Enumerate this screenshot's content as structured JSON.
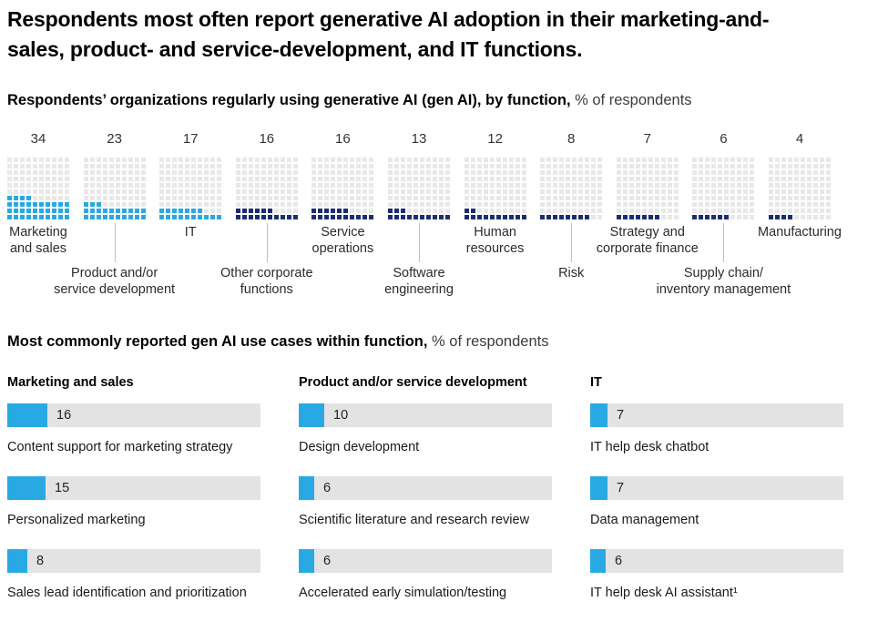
{
  "page": {
    "title": "Respondents most often report generative AI adoption in their marketing-and-sales, product- and service-development, and IT functions.",
    "accent_colors": {
      "cyan": "#29A9E3",
      "navy": "#1C2D72",
      "waffle_gray": "#E8E8E8",
      "track_gray": "#E3E3E3",
      "tick_gray": "#C0C0C0"
    }
  },
  "waffle_section": {
    "heading_bold": "Respondents’ organizations regularly using generative AI (gen AI), by function,",
    "heading_regular": " % of respondents",
    "functions": [
      {
        "label": "Marketing\nand sales",
        "value": 34,
        "highlight": true,
        "label_row": 1
      },
      {
        "label": "Product and/or\nservice development",
        "value": 23,
        "highlight": true,
        "label_row": 2
      },
      {
        "label": "IT",
        "value": 17,
        "highlight": true,
        "label_row": 1
      },
      {
        "label": "Other corporate\nfunctions",
        "value": 16,
        "highlight": false,
        "label_row": 2
      },
      {
        "label": "Service\noperations",
        "value": 16,
        "highlight": false,
        "label_row": 1
      },
      {
        "label": "Software\nengineering",
        "value": 13,
        "highlight": false,
        "label_row": 2
      },
      {
        "label": "Human\nresources",
        "value": 12,
        "highlight": false,
        "label_row": 1
      },
      {
        "label": "Risk",
        "value": 8,
        "highlight": false,
        "label_row": 2
      },
      {
        "label": "Strategy and\ncorporate finance",
        "value": 7,
        "highlight": false,
        "label_row": 1
      },
      {
        "label": "Supply chain/\ninventory management",
        "value": 6,
        "highlight": false,
        "label_row": 2
      },
      {
        "label": "Manufacturing",
        "value": 4,
        "highlight": false,
        "label_row": 1
      }
    ]
  },
  "usecase_section": {
    "heading_bold": "Most commonly reported gen AI use cases within function,",
    "heading_regular": " % of respondents",
    "columns": [
      {
        "title": "Marketing and sales",
        "bars": [
          {
            "label": "Content support for marketing strategy",
            "value": 16
          },
          {
            "label": "Personalized marketing",
            "value": 15
          },
          {
            "label": "Sales lead identification and prioritization",
            "value": 8
          }
        ]
      },
      {
        "title": "Product and/or service development",
        "bars": [
          {
            "label": "Design development",
            "value": 10
          },
          {
            "label": "Scientific literature and research review",
            "value": 6
          },
          {
            "label": "Accelerated early simulation/testing",
            "value": 6
          }
        ]
      },
      {
        "title": "IT",
        "bars": [
          {
            "label": "IT help desk chatbot",
            "value": 7
          },
          {
            "label": "Data management",
            "value": 7
          },
          {
            "label": "IT help desk AI assistant¹",
            "value": 6
          }
        ]
      }
    ]
  },
  "chart_data": [
    {
      "type": "bar",
      "variant": "waffle-grid-10x10",
      "title": "Respondents’ organizations regularly using generative AI (gen AI), by function, % of respondents",
      "categories": [
        "Marketing and sales",
        "Product and/or service development",
        "IT",
        "Other corporate functions",
        "Service operations",
        "Software engineering",
        "Human resources",
        "Risk",
        "Strategy and corporate finance",
        "Supply chain/inventory management",
        "Manufacturing"
      ],
      "values": [
        34,
        23,
        17,
        16,
        16,
        13,
        12,
        8,
        7,
        6,
        4
      ],
      "unit": "% of respondents",
      "ylim": [
        0,
        100
      ],
      "series_colors": [
        "cyan (top 3 highlighted functions)",
        "navy (remaining functions)"
      ],
      "legend": "none"
    },
    {
      "type": "bar",
      "variant": "horizontal-grouped-columns",
      "title": "Most commonly reported gen AI use cases within function, % of respondents",
      "unit": "% of respondents",
      "xlim": [
        0,
        100
      ],
      "groups": [
        {
          "name": "Marketing and sales",
          "categories": [
            "Content support for marketing strategy",
            "Personalized marketing",
            "Sales lead identification and prioritization"
          ],
          "values": [
            16,
            15,
            8
          ]
        },
        {
          "name": "Product and/or service development",
          "categories": [
            "Design development",
            "Scientific literature and research review",
            "Accelerated early simulation/testing"
          ],
          "values": [
            10,
            6,
            6
          ]
        },
        {
          "name": "IT",
          "categories": [
            "IT help desk chatbot",
            "Data management",
            "IT help desk AI assistant¹"
          ],
          "values": [
            7,
            7,
            6
          ]
        }
      ],
      "legend": "none"
    }
  ]
}
